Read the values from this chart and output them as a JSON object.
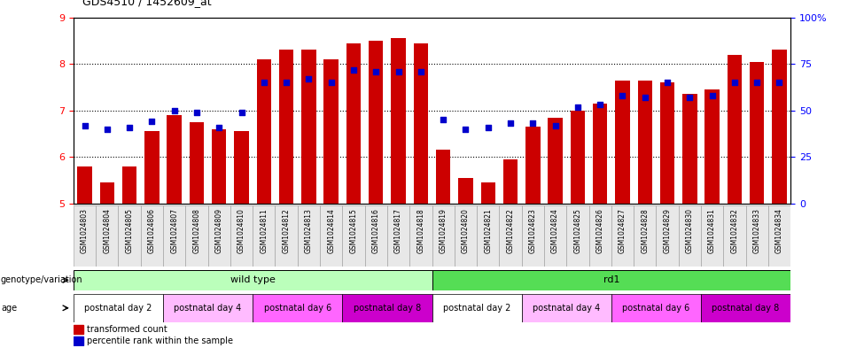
{
  "title": "GDS4510 / 1452609_at",
  "samples": [
    "GSM1024803",
    "GSM1024804",
    "GSM1024805",
    "GSM1024806",
    "GSM1024807",
    "GSM1024808",
    "GSM1024809",
    "GSM1024810",
    "GSM1024811",
    "GSM1024812",
    "GSM1024813",
    "GSM1024814",
    "GSM1024815",
    "GSM1024816",
    "GSM1024817",
    "GSM1024818",
    "GSM1024819",
    "GSM1024820",
    "GSM1024821",
    "GSM1024822",
    "GSM1024823",
    "GSM1024824",
    "GSM1024825",
    "GSM1024826",
    "GSM1024827",
    "GSM1024828",
    "GSM1024829",
    "GSM1024830",
    "GSM1024831",
    "GSM1024832",
    "GSM1024833",
    "GSM1024834"
  ],
  "red_values": [
    5.8,
    5.45,
    5.8,
    6.55,
    6.9,
    6.75,
    6.6,
    6.55,
    8.1,
    8.3,
    8.3,
    8.1,
    8.45,
    8.5,
    8.55,
    8.45,
    6.15,
    5.55,
    5.45,
    5.95,
    6.65,
    6.85,
    7.0,
    7.15,
    7.65,
    7.65,
    7.6,
    7.35,
    7.45,
    8.2,
    8.05,
    8.3
  ],
  "blue_pct": [
    42,
    40,
    41,
    44,
    50,
    49,
    41,
    49,
    65,
    65,
    67,
    65,
    72,
    71,
    71,
    71,
    45,
    40,
    41,
    43,
    43,
    42,
    52,
    53,
    58,
    57,
    65,
    57,
    58,
    65,
    65,
    65
  ],
  "ylim_left": [
    5,
    9
  ],
  "ylim_right": [
    0,
    100
  ],
  "yticks_left": [
    5,
    6,
    7,
    8,
    9
  ],
  "yticks_right": [
    0,
    25,
    50,
    75,
    100
  ],
  "ytick_labels_right": [
    "0",
    "25",
    "50",
    "75",
    "100%"
  ],
  "bar_color": "#cc0000",
  "dot_color": "#0000cc",
  "wild_type_light": "#bbffbb",
  "wild_type_dark": "#55dd55",
  "age_colors": [
    "#ffffff",
    "#ffbbff",
    "#ff66ff",
    "#cc00cc"
  ]
}
